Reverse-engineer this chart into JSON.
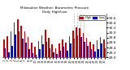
{
  "title": "Milwaukee Weather: Barometric Pressure",
  "subtitle": "Daily High/Low",
  "legend_high": "High",
  "legend_low": "Low",
  "high_color": "#cc0000",
  "low_color": "#0000cc",
  "background_color": "#ffffff",
  "ylim": [
    29.0,
    30.75
  ],
  "yticks": [
    29.0,
    29.2,
    29.4,
    29.6,
    29.8,
    30.0,
    30.2,
    30.4,
    30.6
  ],
  "dotted_line_indices": [
    20,
    21,
    22,
    23
  ],
  "n_days": 30,
  "highs": [
    29.72,
    29.85,
    30.05,
    30.42,
    30.52,
    30.28,
    30.05,
    29.82,
    29.58,
    29.42,
    29.65,
    29.88,
    30.1,
    29.78,
    29.52,
    29.38,
    29.55,
    29.72,
    29.58,
    29.85,
    30.08,
    30.22,
    30.18,
    29.98,
    29.78,
    29.62,
    29.52,
    29.68,
    29.82,
    29.72
  ],
  "lows": [
    29.38,
    29.22,
    29.45,
    29.92,
    30.05,
    29.75,
    29.58,
    29.32,
    29.18,
    29.12,
    29.32,
    29.52,
    29.62,
    29.38,
    29.22,
    29.15,
    29.28,
    29.42,
    29.28,
    29.55,
    29.75,
    29.88,
    29.82,
    29.62,
    29.45,
    29.32,
    29.25,
    29.35,
    29.55,
    29.38
  ]
}
